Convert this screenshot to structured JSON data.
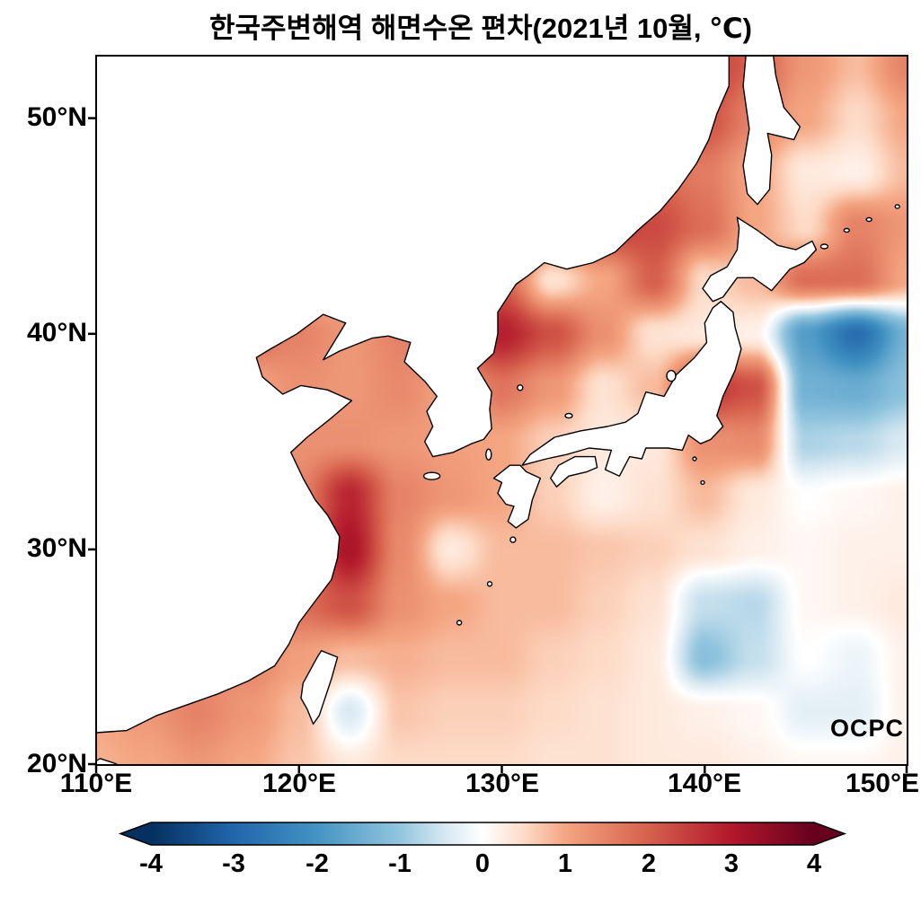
{
  "branding": {
    "logo_text": "OCPC"
  },
  "axes": {
    "x_ticks": [
      "110°E",
      "120°E",
      "130°E",
      "140°E",
      "150°E"
    ],
    "y_ticks": [
      "50°N",
      "40°N",
      "30°N",
      "20°N"
    ]
  },
  "colorbar_ticks": [
    "-4",
    "-3",
    "-2",
    "-1",
    "0",
    "1",
    "2",
    "3",
    "4"
  ],
  "chart_data": {
    "type": "heatmap",
    "title": "한국주변해역 해면수온 편차(2021년 10월, ℃)",
    "subtitle": "",
    "units": "℃",
    "lon_range": [
      110,
      150
    ],
    "lat_range": [
      20,
      52.9
    ],
    "lon_ticks": [
      110,
      120,
      130,
      140,
      150
    ],
    "lat_ticks": [
      20,
      30,
      40,
      50
    ],
    "grid_on": false,
    "legend_position": "bottom-colorbar",
    "colorbar": {
      "min": -4,
      "max": 4,
      "ticks": [
        -4,
        -3,
        -2,
        -1,
        0,
        1,
        2,
        3,
        4
      ],
      "extend": "both",
      "colormap": [
        [
          -4,
          "#053061"
        ],
        [
          -3,
          "#2166ac"
        ],
        [
          -2,
          "#4393c3"
        ],
        [
          -1,
          "#92c5de"
        ],
        [
          -0.5,
          "#d1e5f0"
        ],
        [
          0,
          "#ffffff"
        ],
        [
          0.5,
          "#fddbc7"
        ],
        [
          1,
          "#f4a582"
        ],
        [
          2,
          "#d6604d"
        ],
        [
          3,
          "#b2182b"
        ],
        [
          4,
          "#67001f"
        ]
      ]
    },
    "grid": {
      "lons": [
        110,
        112.5,
        115,
        117.5,
        120,
        122.5,
        125,
        127.5,
        130,
        132.5,
        135,
        137.5,
        140,
        142.5,
        145,
        147.5,
        150
      ],
      "lats": [
        52.5,
        50,
        47.5,
        45,
        42.5,
        40,
        37.5,
        35,
        32.5,
        30,
        27.5,
        25,
        22.5,
        20
      ],
      "values": [
        [
          0.5,
          0.5,
          0.5,
          0.5,
          0.5,
          0.5,
          0.5,
          0.8,
          1.0,
          1.2,
          1.5,
          1.8,
          2.5,
          2.0,
          1.2,
          0.8,
          1.5
        ],
        [
          0.5,
          0.5,
          0.5,
          0.5,
          0.5,
          0.5,
          0.8,
          1.0,
          1.2,
          1.4,
          1.6,
          1.8,
          2.2,
          1.5,
          1.0,
          0.5,
          1.0
        ],
        [
          0.5,
          0.5,
          0.5,
          0.5,
          0.5,
          0.6,
          0.8,
          1.0,
          1.2,
          1.4,
          1.6,
          1.9,
          1.6,
          1.0,
          0.3,
          0.2,
          0.8
        ],
        [
          0.5,
          0.5,
          0.5,
          0.5,
          0.6,
          0.8,
          1.0,
          1.5,
          2.0,
          2.3,
          2.5,
          2.3,
          1.8,
          1.0,
          0.5,
          1.5,
          1.2
        ],
        [
          0.5,
          0.5,
          0.5,
          0.5,
          0.6,
          0.9,
          1.3,
          1.8,
          2.0,
          0.4,
          1.0,
          2.0,
          0.5,
          0.8,
          1.8,
          1.8,
          1.0
        ],
        [
          0.5,
          0.5,
          1.0,
          1.8,
          1.5,
          1.2,
          1.5,
          2.2,
          2.9,
          2.2,
          1.3,
          0.4,
          0.3,
          0.2,
          -1.8,
          -2.8,
          -1.4
        ],
        [
          0.5,
          0.5,
          0.8,
          1.0,
          1.3,
          1.2,
          1.4,
          1.0,
          1.7,
          1.2,
          0.4,
          0.8,
          2.6,
          2.2,
          -1.4,
          -1.5,
          -1.1
        ],
        [
          0.5,
          0.5,
          0.6,
          0.9,
          1.3,
          1.3,
          1.2,
          1.1,
          1.0,
          0.6,
          0.3,
          0.3,
          1.3,
          1.4,
          -0.8,
          -0.7,
          -0.4
        ],
        [
          0.5,
          0.5,
          0.8,
          1.2,
          1.5,
          2.8,
          1.5,
          1.2,
          1.0,
          0.6,
          0.2,
          0.4,
          0.8,
          0.3,
          0.0,
          0.1,
          0.2
        ],
        [
          0.5,
          0.6,
          0.8,
          1.2,
          1.8,
          3.1,
          1.4,
          0.3,
          0.8,
          0.8,
          0.7,
          0.6,
          0.4,
          0.2,
          0.1,
          0.2,
          0.2
        ],
        [
          0.6,
          0.8,
          1.0,
          1.4,
          1.8,
          2.2,
          1.3,
          1.0,
          0.8,
          0.8,
          0.6,
          0.4,
          -0.6,
          -0.7,
          0.1,
          0.2,
          0.3
        ],
        [
          0.8,
          1.0,
          1.2,
          1.5,
          1.1,
          0.8,
          0.9,
          0.8,
          0.8,
          0.6,
          0.5,
          0.3,
          -1.1,
          -0.6,
          0.0,
          -0.2,
          0.2
        ],
        [
          1.0,
          1.2,
          1.5,
          1.2,
          0.8,
          -0.4,
          0.7,
          0.6,
          0.6,
          0.5,
          0.4,
          0.3,
          0.2,
          0.1,
          -0.3,
          -0.3,
          0.2
        ],
        [
          0.9,
          1.0,
          1.2,
          1.0,
          0.7,
          0.3,
          0.5,
          0.5,
          0.5,
          0.4,
          0.4,
          0.3,
          0.3,
          0.2,
          0.1,
          0.1,
          0.2
        ]
      ]
    }
  }
}
